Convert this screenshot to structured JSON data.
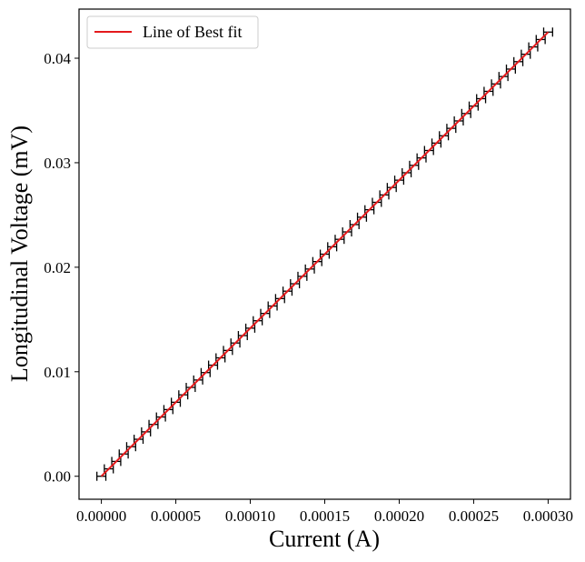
{
  "chart_data": {
    "type": "scatter",
    "title": "",
    "xlabel": "Current (A)",
    "ylabel": "Longitudinal Voltage (mV)",
    "xlim": [
      -1.5e-05,
      0.000315
    ],
    "ylim": [
      -0.0022,
      0.0447
    ],
    "grid": false,
    "legend": {
      "placement": "top-left",
      "entries": [
        "Line of Best fit"
      ]
    },
    "x_ticks": [
      {
        "value": 0.0,
        "label": "0.00000"
      },
      {
        "value": 5e-05,
        "label": "0.00005"
      },
      {
        "value": 0.0001,
        "label": "0.00010"
      },
      {
        "value": 0.00015,
        "label": "0.00015"
      },
      {
        "value": 0.0002,
        "label": "0.00020"
      },
      {
        "value": 0.00025,
        "label": "0.00025"
      },
      {
        "value": 0.0003,
        "label": "0.00030"
      }
    ],
    "y_ticks": [
      {
        "value": 0.0,
        "label": "0.00"
      },
      {
        "value": 0.01,
        "label": "0.01"
      },
      {
        "value": 0.02,
        "label": "0.02"
      },
      {
        "value": 0.03,
        "label": "0.03"
      },
      {
        "value": 0.04,
        "label": "0.04"
      }
    ],
    "series": [
      {
        "kind": "errorbar",
        "color": "#000000",
        "x_error": 3e-06,
        "x": [
          0.0,
          5e-06,
          1e-05,
          1.5e-05,
          2e-05,
          2.5e-05,
          3e-05,
          3.5e-05,
          4e-05,
          4.5e-05,
          5e-05,
          5.5e-05,
          6e-05,
          6.5e-05,
          7e-05,
          7.5e-05,
          8e-05,
          8.5e-05,
          9e-05,
          9.5e-05,
          0.0001,
          0.000105,
          0.00011,
          0.000115,
          0.00012,
          0.000125,
          0.00013,
          0.000135,
          0.00014,
          0.000145,
          0.00015,
          0.000155,
          0.00016,
          0.000165,
          0.00017,
          0.000175,
          0.00018,
          0.000185,
          0.00019,
          0.000195,
          0.0002,
          0.000205,
          0.00021,
          0.000215,
          0.00022,
          0.000225,
          0.00023,
          0.000235,
          0.00024,
          0.000245,
          0.00025,
          0.000255,
          0.00026,
          0.000265,
          0.00027,
          0.000275,
          0.00028,
          0.000285,
          0.00029,
          0.000295,
          0.0003
        ],
        "y": [
          0.0,
          0.00071,
          0.00142,
          0.00213,
          0.00283,
          0.00354,
          0.00425,
          0.00496,
          0.00567,
          0.00638,
          0.00708,
          0.00779,
          0.0085,
          0.00921,
          0.00992,
          0.01063,
          0.01133,
          0.01204,
          0.01275,
          0.01346,
          0.01417,
          0.01488,
          0.01558,
          0.01629,
          0.017,
          0.01771,
          0.01842,
          0.01913,
          0.01983,
          0.02054,
          0.02125,
          0.02196,
          0.02267,
          0.02338,
          0.02408,
          0.02479,
          0.0255,
          0.02621,
          0.02692,
          0.02763,
          0.02833,
          0.02904,
          0.02975,
          0.03046,
          0.03117,
          0.03188,
          0.03258,
          0.03329,
          0.034,
          0.03471,
          0.03542,
          0.03613,
          0.03683,
          0.03754,
          0.03825,
          0.03896,
          0.03967,
          0.04038,
          0.04108,
          0.04179,
          0.0425
        ]
      },
      {
        "kind": "line",
        "name": "Line of Best fit",
        "color": "#e41a1c",
        "x": [
          0.0,
          0.0003
        ],
        "y": [
          0.0,
          0.0425
        ]
      }
    ]
  }
}
